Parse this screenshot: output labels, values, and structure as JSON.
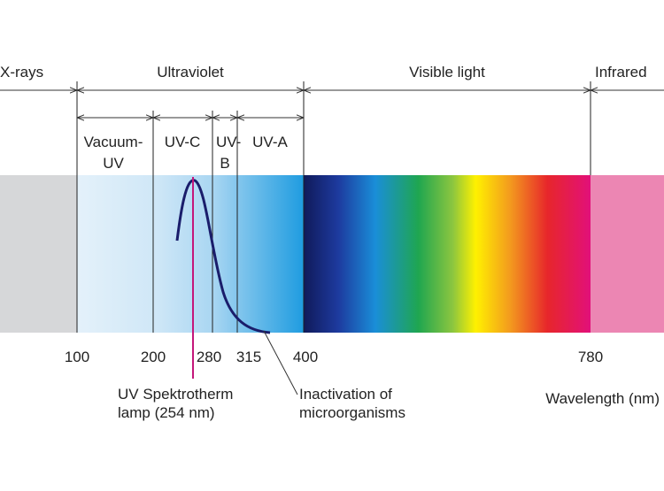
{
  "regions": [
    "X-rays",
    "Ultraviolet",
    "Visible light",
    "Infrared"
  ],
  "sub_regions": [
    [
      "Vacuum-",
      "UV"
    ],
    [
      "UV-C"
    ],
    [
      "UV-",
      "B"
    ],
    [
      "UV-A"
    ]
  ],
  "scale_labels": [
    100,
    200,
    280,
    315,
    400,
    780
  ],
  "annotations": {
    "lamp": [
      "UV Spektrotherm",
      "lamp (254 nm)"
    ],
    "inactivation": [
      "Inactivation of",
      "microorganisms"
    ]
  },
  "axis_label": "Wavelength (nm)"
}
